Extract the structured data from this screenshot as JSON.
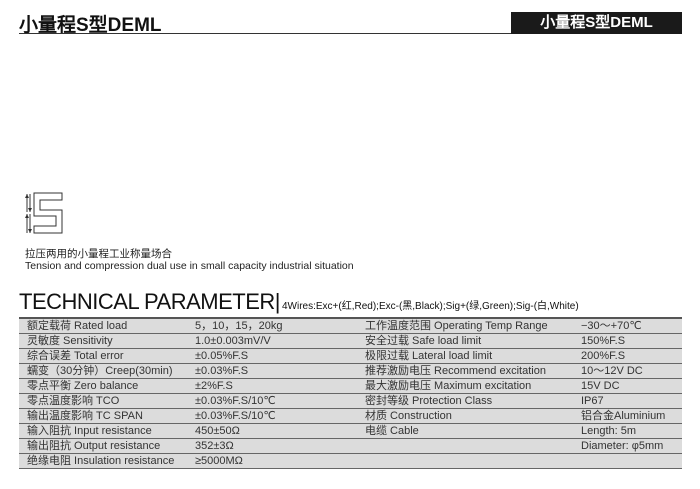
{
  "header": {
    "title": "小量程S型DEML",
    "badge": "小量程S型DEML"
  },
  "description": {
    "zh": "拉压两用的小量程工业称量场合",
    "en": "Tension and compression dual use in small capacity industrial situation"
  },
  "section": {
    "title": "TECHNICAL PARAMETER|",
    "wires": "4Wires:Exc+(红,Red);Exc-(黑,Black);Sig+(绿,Green);Sig-(白,White)"
  },
  "rows": [
    {
      "l_label": "额定载荷 Rated load",
      "l_value": "5，10，15，20kg",
      "r_label": "工作温度范围 Operating Temp Range",
      "r_value": "−30～+70℃"
    },
    {
      "l_label": "灵敏度 Sensitivity",
      "l_value": "1.0±0.003mV/V",
      "r_label": "安全过载 Safe load limit",
      "r_value": "150%F.S"
    },
    {
      "l_label": "综合误差 Total error",
      "l_value": "±0.05%F.S",
      "r_label": "极限过载 Lateral load limit",
      "r_value": "200%F.S"
    },
    {
      "l_label": "蠕变（30分钟）Creep(30min)",
      "l_value": "±0.03%F.S",
      "r_label": "推荐激励电压 Recommend excitation",
      "r_value": "10～12V DC"
    },
    {
      "l_label": "零点平衡 Zero balance",
      "l_value": "±2%F.S",
      "r_label": "最大激励电压 Maximum excitation",
      "r_value": "15V DC"
    },
    {
      "l_label": "零点温度影响 TCO",
      "l_value": "±0.03%F.S/10℃",
      "r_label": "密封等级 Protection Class",
      "r_value": "IP67"
    },
    {
      "l_label": "输出温度影响 TC SPAN",
      "l_value": "±0.03%F.S/10℃",
      "r_label": "材质 Construction",
      "r_value": "铝合金Aluminium"
    },
    {
      "l_label": "输入阻抗 Input resistance",
      "l_value": "450±50Ω",
      "r_label": "电缆  Cable",
      "r_value": "Length:     5m"
    },
    {
      "l_label": "输出阻抗 Output resistance",
      "l_value": "352±3Ω",
      "r_label": "",
      "r_value": "Diameter: φ5mm"
    },
    {
      "l_label": "绝缘电阻 Insulation resistance",
      "l_value": "≥5000MΩ",
      "r_label": "",
      "r_value": ""
    }
  ]
}
